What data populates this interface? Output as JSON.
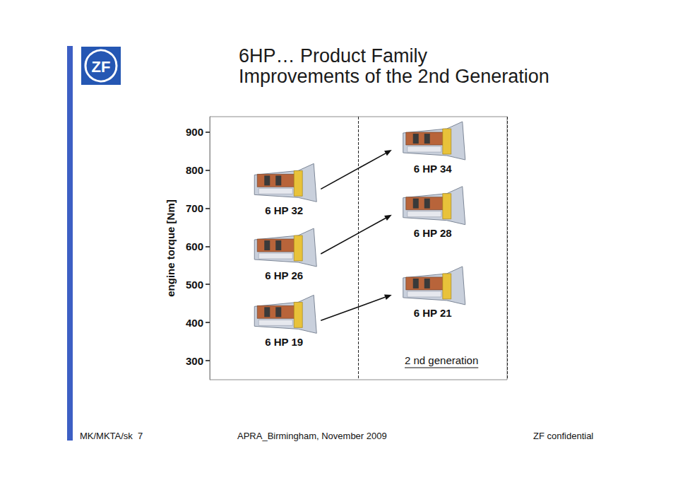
{
  "chart_data": {
    "type": "scatter",
    "title": "6HP… Product Family",
    "subtitle": "Improvements of the 2nd Generation",
    "ylabel": "engine torque [Nm]",
    "ylim": [
      250,
      940
    ],
    "yticks": [
      300,
      400,
      500,
      600,
      700,
      800,
      900
    ],
    "grid": false,
    "tick_labels": "y",
    "categories": [
      null,
      null
    ],
    "transmissions": [
      {
        "label": "6 HP 32",
        "column": 0,
        "torque": 765
      },
      {
        "label": "6 HP 26",
        "column": 0,
        "torque": 595
      },
      {
        "label": "6 HP 19",
        "column": 0,
        "torque": 420
      },
      {
        "label": "6 HP 34",
        "column": 1,
        "torque": 875
      },
      {
        "label": "6 HP 28",
        "column": 1,
        "torque": 705
      },
      {
        "label": "6 HP 21",
        "column": 1,
        "torque": 495
      }
    ],
    "arrows": [
      [
        "6 HP 32",
        "6 HP 34"
      ],
      [
        "6 HP 26",
        "6 HP 28"
      ],
      [
        "6 HP 19",
        "6 HP 21"
      ]
    ],
    "annotation": "2 nd generation"
  },
  "slide": {
    "logo": "ZF",
    "footer_left": "MK/MKTA/sk  7",
    "footer_center": "APRA_Birmingham, November 2009",
    "footer_right": "ZF confidential"
  }
}
